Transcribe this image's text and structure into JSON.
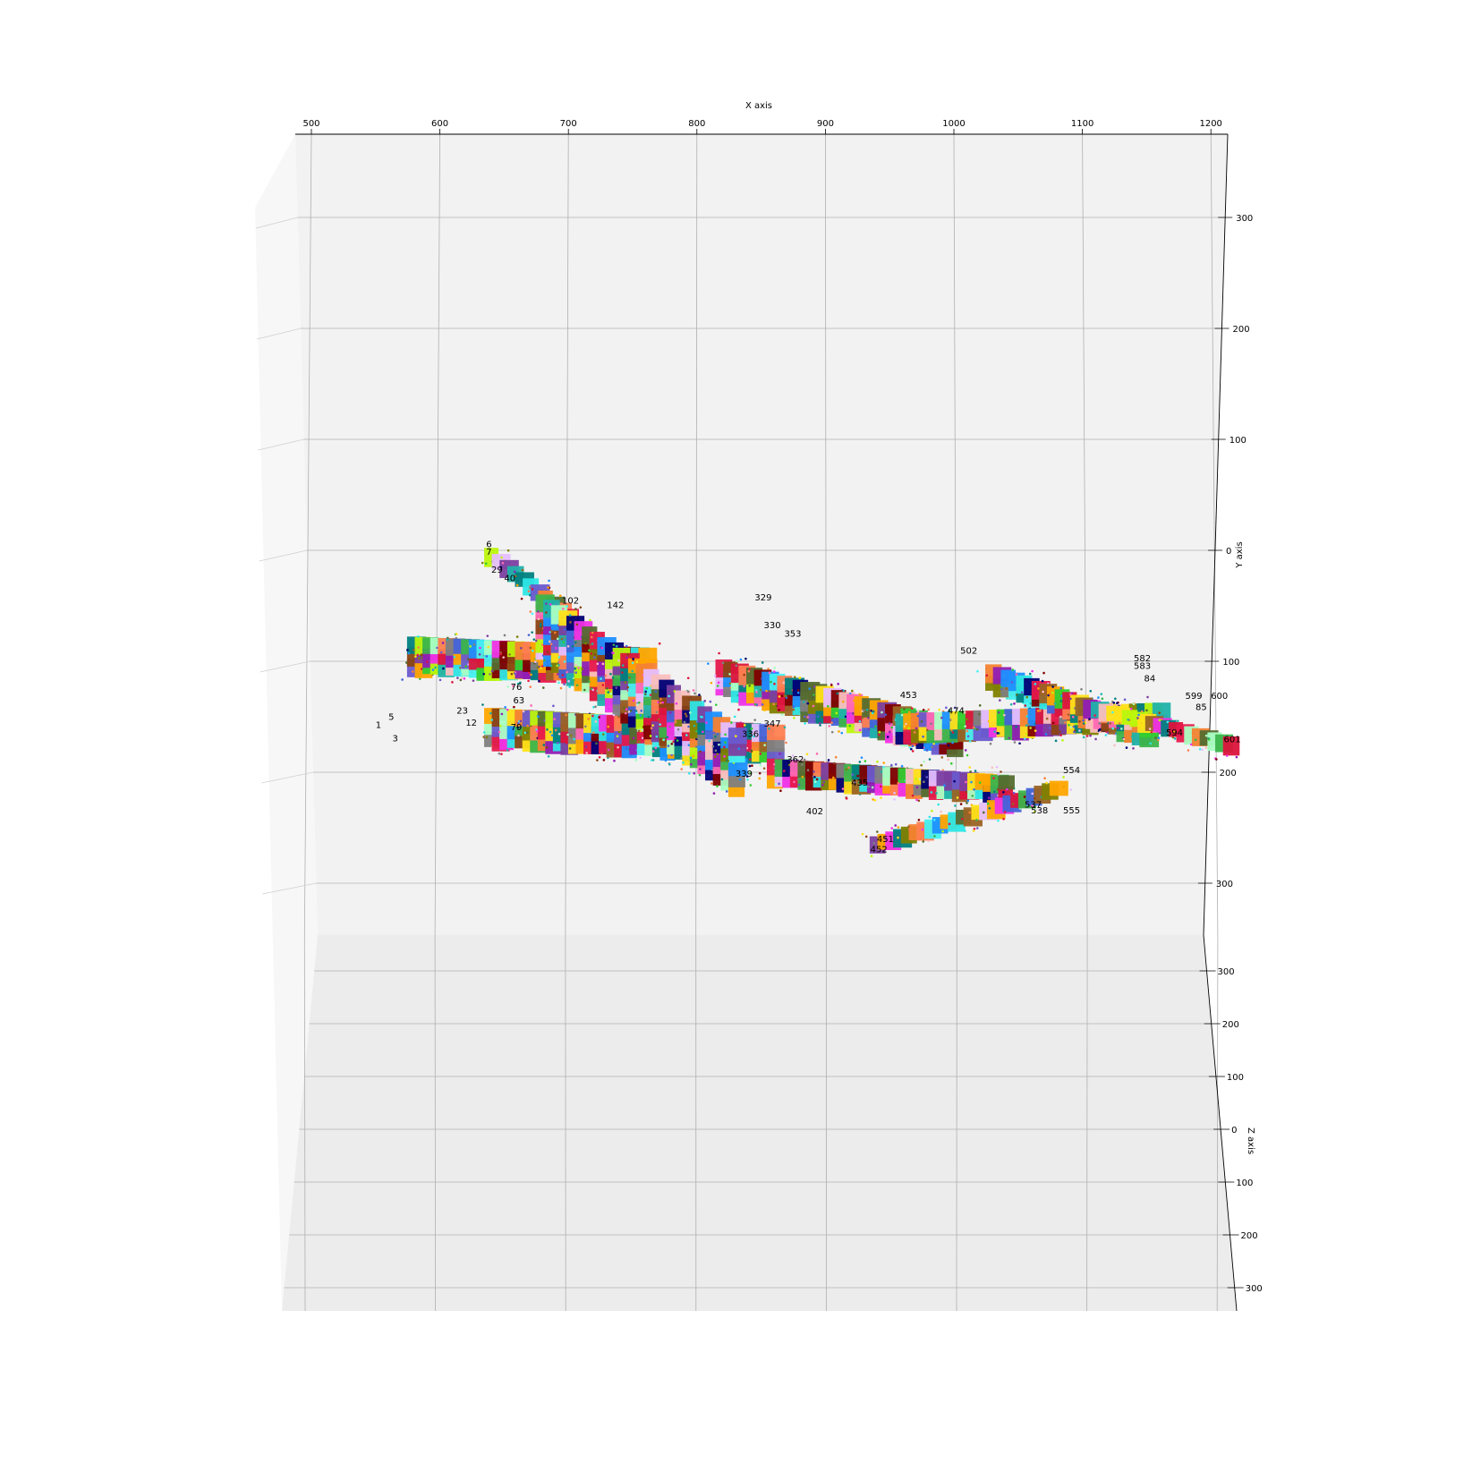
{
  "chart_data": {
    "type": "scatter",
    "subtype": "3d-scatter",
    "title": "",
    "xlabel": "X axis",
    "ylabel": "Y axis",
    "zlabel": "Z axis",
    "xlim": [
      480,
      1215
    ],
    "ylim": [
      -360,
      355
    ],
    "zlim": [
      -330,
      330
    ],
    "x_ticks": [
      500,
      600,
      700,
      800,
      900,
      1000,
      1100,
      1200
    ],
    "y_ticks": [
      300,
      200,
      100,
      0,
      -100,
      -200,
      -300
    ],
    "y_tick_labels": [
      "300",
      "200",
      "100",
      "0",
      "100",
      "200",
      "300"
    ],
    "z_ticks": [
      -300,
      -200,
      -100,
      0,
      100,
      200,
      300
    ],
    "z_tick_labels": [
      "300",
      "200",
      "100",
      "0",
      "100",
      "200",
      "300"
    ],
    "grid": true,
    "legend": "none",
    "series_note": "segments colored individually",
    "segment_labels": [
      {
        "text": "6",
        "x": 636,
        "y": 3
      },
      {
        "text": "7",
        "x": 636,
        "y": -4
      },
      {
        "text": "29",
        "x": 640,
        "y": -20
      },
      {
        "text": "40",
        "x": 650,
        "y": -28
      },
      {
        "text": "102",
        "x": 695,
        "y": -48
      },
      {
        "text": "142",
        "x": 730,
        "y": -52
      },
      {
        "text": "329",
        "x": 845,
        "y": -45
      },
      {
        "text": "330",
        "x": 852,
        "y": -70
      },
      {
        "text": "353",
        "x": 868,
        "y": -78
      },
      {
        "text": "502",
        "x": 1005,
        "y": -93
      },
      {
        "text": "582",
        "x": 1140,
        "y": -100
      },
      {
        "text": "583",
        "x": 1140,
        "y": -107
      },
      {
        "text": "84",
        "x": 1148,
        "y": -118
      },
      {
        "text": "599",
        "x": 1180,
        "y": -134
      },
      {
        "text": "600",
        "x": 1200,
        "y": -134
      },
      {
        "text": "85",
        "x": 1188,
        "y": -144
      },
      {
        "text": "474",
        "x": 995,
        "y": -147
      },
      {
        "text": "453",
        "x": 958,
        "y": -133
      },
      {
        "text": "76",
        "x": 655,
        "y": -126
      },
      {
        "text": "63",
        "x": 657,
        "y": -138
      },
      {
        "text": "23",
        "x": 613,
        "y": -147
      },
      {
        "text": "12",
        "x": 620,
        "y": -158
      },
      {
        "text": "79",
        "x": 655,
        "y": -162
      },
      {
        "text": "5",
        "x": 560,
        "y": -153
      },
      {
        "text": "1",
        "x": 550,
        "y": -160
      },
      {
        "text": "3",
        "x": 563,
        "y": -172
      },
      {
        "text": "347",
        "x": 852,
        "y": -159
      },
      {
        "text": "336",
        "x": 835,
        "y": -168
      },
      {
        "text": "594",
        "x": 1165,
        "y": -167
      },
      {
        "text": "601",
        "x": 1210,
        "y": -173
      },
      {
        "text": "339",
        "x": 830,
        "y": -204
      },
      {
        "text": "362",
        "x": 870,
        "y": -191
      },
      {
        "text": "554",
        "x": 1085,
        "y": -201
      },
      {
        "text": "435",
        "x": 920,
        "y": -212
      },
      {
        "text": "537",
        "x": 1055,
        "y": -232
      },
      {
        "text": "538",
        "x": 1060,
        "y": -237
      },
      {
        "text": "555",
        "x": 1085,
        "y": -237
      },
      {
        "text": "402",
        "x": 885,
        "y": -238
      },
      {
        "text": "451",
        "x": 940,
        "y": -263
      },
      {
        "text": "452",
        "x": 935,
        "y": -272
      }
    ]
  }
}
